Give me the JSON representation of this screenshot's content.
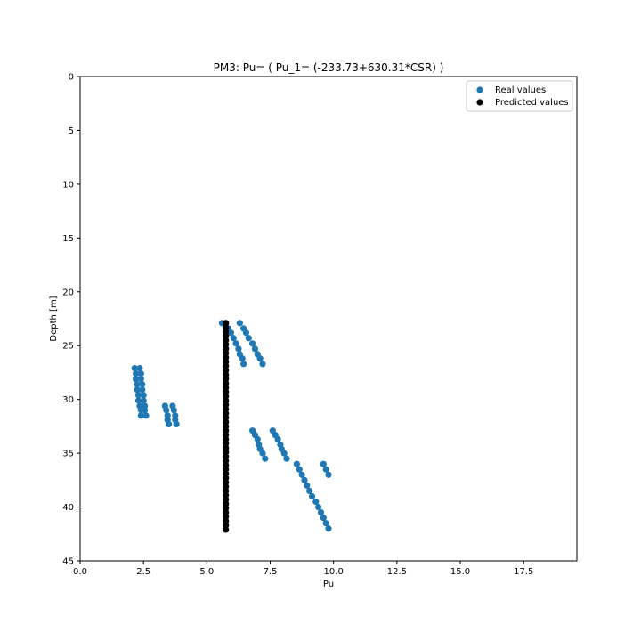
{
  "chart_data": {
    "type": "scatter",
    "title": "PM3: Pu= ( Pu_1= (-233.73+630.31*CSR) )",
    "xlabel": "Pu",
    "ylabel": "Depth [m]",
    "xlim": [
      0,
      19.6
    ],
    "ylim": [
      45,
      0
    ],
    "y_inverted": true,
    "grid": false,
    "legend_position": "top-right",
    "x_ticks": [
      "0.0",
      "2.5",
      "5.0",
      "7.5",
      "10.0",
      "12.5",
      "15.0",
      "17.5"
    ],
    "x_tick_values": [
      0,
      2.5,
      5,
      7.5,
      10,
      12.5,
      15,
      17.5
    ],
    "y_ticks": [
      "0",
      "5",
      "10",
      "15",
      "20",
      "25",
      "30",
      "35",
      "40",
      "45"
    ],
    "y_tick_values": [
      0,
      5,
      10,
      15,
      20,
      25,
      30,
      35,
      40,
      45
    ],
    "series": [
      {
        "name": "Real values",
        "color": "#1f77b4",
        "points": [
          [
            5.6,
            22.9
          ],
          [
            5.85,
            23.4
          ],
          [
            5.95,
            23.8
          ],
          [
            6.05,
            24.3
          ],
          [
            6.15,
            24.8
          ],
          [
            6.25,
            25.3
          ],
          [
            6.3,
            25.8
          ],
          [
            6.4,
            26.2
          ],
          [
            6.45,
            26.7
          ],
          [
            6.3,
            22.9
          ],
          [
            6.45,
            23.4
          ],
          [
            6.55,
            23.8
          ],
          [
            6.65,
            24.3
          ],
          [
            6.8,
            24.8
          ],
          [
            6.9,
            25.3
          ],
          [
            7.0,
            25.8
          ],
          [
            7.1,
            26.2
          ],
          [
            7.2,
            26.7
          ],
          [
            2.15,
            27.1
          ],
          [
            2.2,
            27.6
          ],
          [
            2.2,
            28.1
          ],
          [
            2.25,
            28.6
          ],
          [
            2.25,
            29.1
          ],
          [
            2.3,
            29.6
          ],
          [
            2.3,
            30.1
          ],
          [
            2.35,
            30.6
          ],
          [
            2.4,
            31.0
          ],
          [
            2.4,
            31.5
          ],
          [
            2.35,
            27.1
          ],
          [
            2.4,
            27.6
          ],
          [
            2.4,
            28.1
          ],
          [
            2.45,
            28.6
          ],
          [
            2.45,
            29.1
          ],
          [
            2.5,
            29.6
          ],
          [
            2.5,
            30.1
          ],
          [
            2.55,
            30.6
          ],
          [
            2.55,
            31.0
          ],
          [
            2.6,
            31.5
          ],
          [
            3.35,
            30.6
          ],
          [
            3.4,
            31.0
          ],
          [
            3.45,
            31.5
          ],
          [
            3.45,
            31.9
          ],
          [
            3.5,
            32.3
          ],
          [
            3.65,
            30.6
          ],
          [
            3.7,
            31.0
          ],
          [
            3.75,
            31.5
          ],
          [
            3.75,
            31.9
          ],
          [
            3.8,
            32.3
          ],
          [
            6.8,
            32.9
          ],
          [
            6.9,
            33.3
          ],
          [
            7.0,
            33.7
          ],
          [
            7.05,
            34.2
          ],
          [
            7.1,
            34.6
          ],
          [
            7.2,
            35.0
          ],
          [
            7.3,
            35.5
          ],
          [
            7.6,
            32.9
          ],
          [
            7.7,
            33.3
          ],
          [
            7.8,
            33.7
          ],
          [
            7.9,
            34.2
          ],
          [
            7.95,
            34.6
          ],
          [
            8.05,
            35.0
          ],
          [
            8.15,
            35.5
          ],
          [
            8.55,
            36.0
          ],
          [
            8.65,
            36.5
          ],
          [
            8.75,
            37.0
          ],
          [
            8.85,
            37.5
          ],
          [
            8.95,
            38.0
          ],
          [
            9.05,
            38.5
          ],
          [
            9.15,
            39.0
          ],
          [
            9.3,
            39.5
          ],
          [
            9.4,
            40.0
          ],
          [
            9.5,
            40.5
          ],
          [
            9.6,
            41.0
          ],
          [
            9.7,
            41.5
          ],
          [
            9.8,
            42.0
          ],
          [
            9.6,
            36.0
          ],
          [
            9.7,
            36.5
          ],
          [
            9.8,
            37.0
          ]
        ]
      },
      {
        "name": "Predicted values",
        "color": "#000000",
        "points": [
          [
            5.75,
            22.9
          ],
          [
            5.75,
            23.3
          ],
          [
            5.75,
            23.7
          ],
          [
            5.75,
            24.1
          ],
          [
            5.75,
            24.5
          ],
          [
            5.75,
            24.9
          ],
          [
            5.75,
            25.3
          ],
          [
            5.75,
            25.7
          ],
          [
            5.75,
            26.1
          ],
          [
            5.75,
            26.5
          ],
          [
            5.75,
            26.9
          ],
          [
            5.75,
            27.3
          ],
          [
            5.75,
            27.7
          ],
          [
            5.75,
            28.1
          ],
          [
            5.75,
            28.5
          ],
          [
            5.75,
            28.9
          ],
          [
            5.75,
            29.3
          ],
          [
            5.75,
            29.7
          ],
          [
            5.75,
            30.1
          ],
          [
            5.75,
            30.5
          ],
          [
            5.75,
            30.9
          ],
          [
            5.75,
            31.3
          ],
          [
            5.75,
            31.7
          ],
          [
            5.75,
            32.1
          ],
          [
            5.75,
            32.5
          ],
          [
            5.75,
            32.9
          ],
          [
            5.75,
            33.3
          ],
          [
            5.75,
            33.7
          ],
          [
            5.75,
            34.1
          ],
          [
            5.75,
            34.5
          ],
          [
            5.75,
            34.9
          ],
          [
            5.75,
            35.3
          ],
          [
            5.75,
            35.7
          ],
          [
            5.75,
            36.1
          ],
          [
            5.75,
            36.5
          ],
          [
            5.75,
            36.9
          ],
          [
            5.75,
            37.3
          ],
          [
            5.75,
            37.7
          ],
          [
            5.75,
            38.1
          ],
          [
            5.75,
            38.5
          ],
          [
            5.75,
            38.9
          ],
          [
            5.75,
            39.3
          ],
          [
            5.75,
            39.7
          ],
          [
            5.75,
            40.1
          ],
          [
            5.75,
            40.5
          ],
          [
            5.75,
            40.9
          ],
          [
            5.75,
            41.3
          ],
          [
            5.75,
            41.7
          ],
          [
            5.75,
            42.1
          ]
        ]
      }
    ]
  }
}
